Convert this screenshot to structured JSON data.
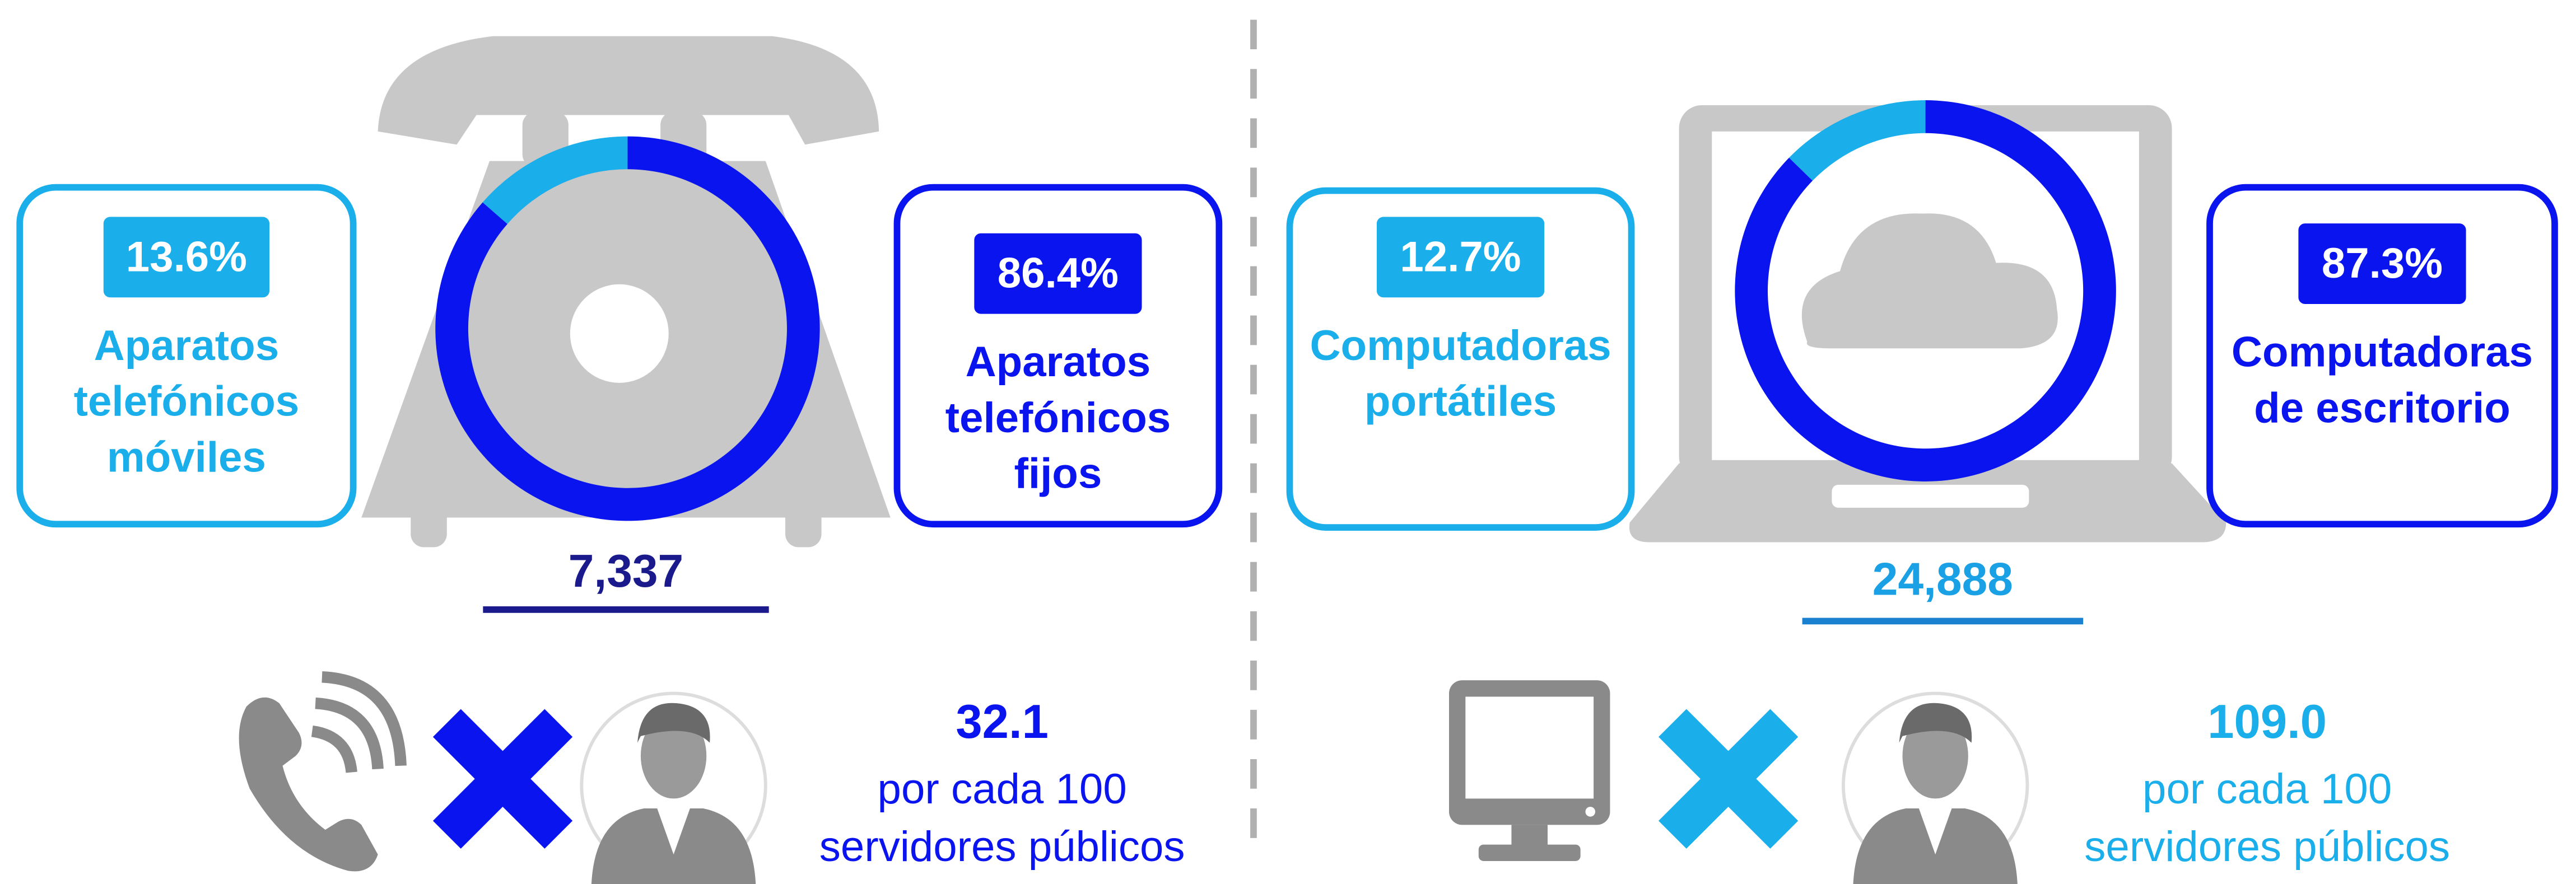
{
  "chart_data": [
    {
      "type": "pie",
      "categories": [
        "Aparatos telefónicos móviles",
        "Aparatos telefónicos fijos"
      ],
      "values": [
        13.6,
        86.4
      ],
      "value_labels": [
        "13.6%",
        "86.4%"
      ],
      "colors": [
        "#1aaeea",
        "#0a14ee"
      ],
      "total": "7,337",
      "ratio": "32.1",
      "ratio_text": [
        "por cada 100",
        "servidores públicos"
      ]
    },
    {
      "type": "pie",
      "categories": [
        "Computadoras portátiles",
        "Computadoras de escritorio"
      ],
      "values": [
        12.7,
        87.3
      ],
      "value_labels": [
        "12.7%",
        "87.3%"
      ],
      "colors": [
        "#1aaeea",
        "#0a14ee"
      ],
      "total": "24,888",
      "ratio": "109.0",
      "ratio_text": [
        "por cada 100",
        "servidores públicos"
      ]
    }
  ]
}
